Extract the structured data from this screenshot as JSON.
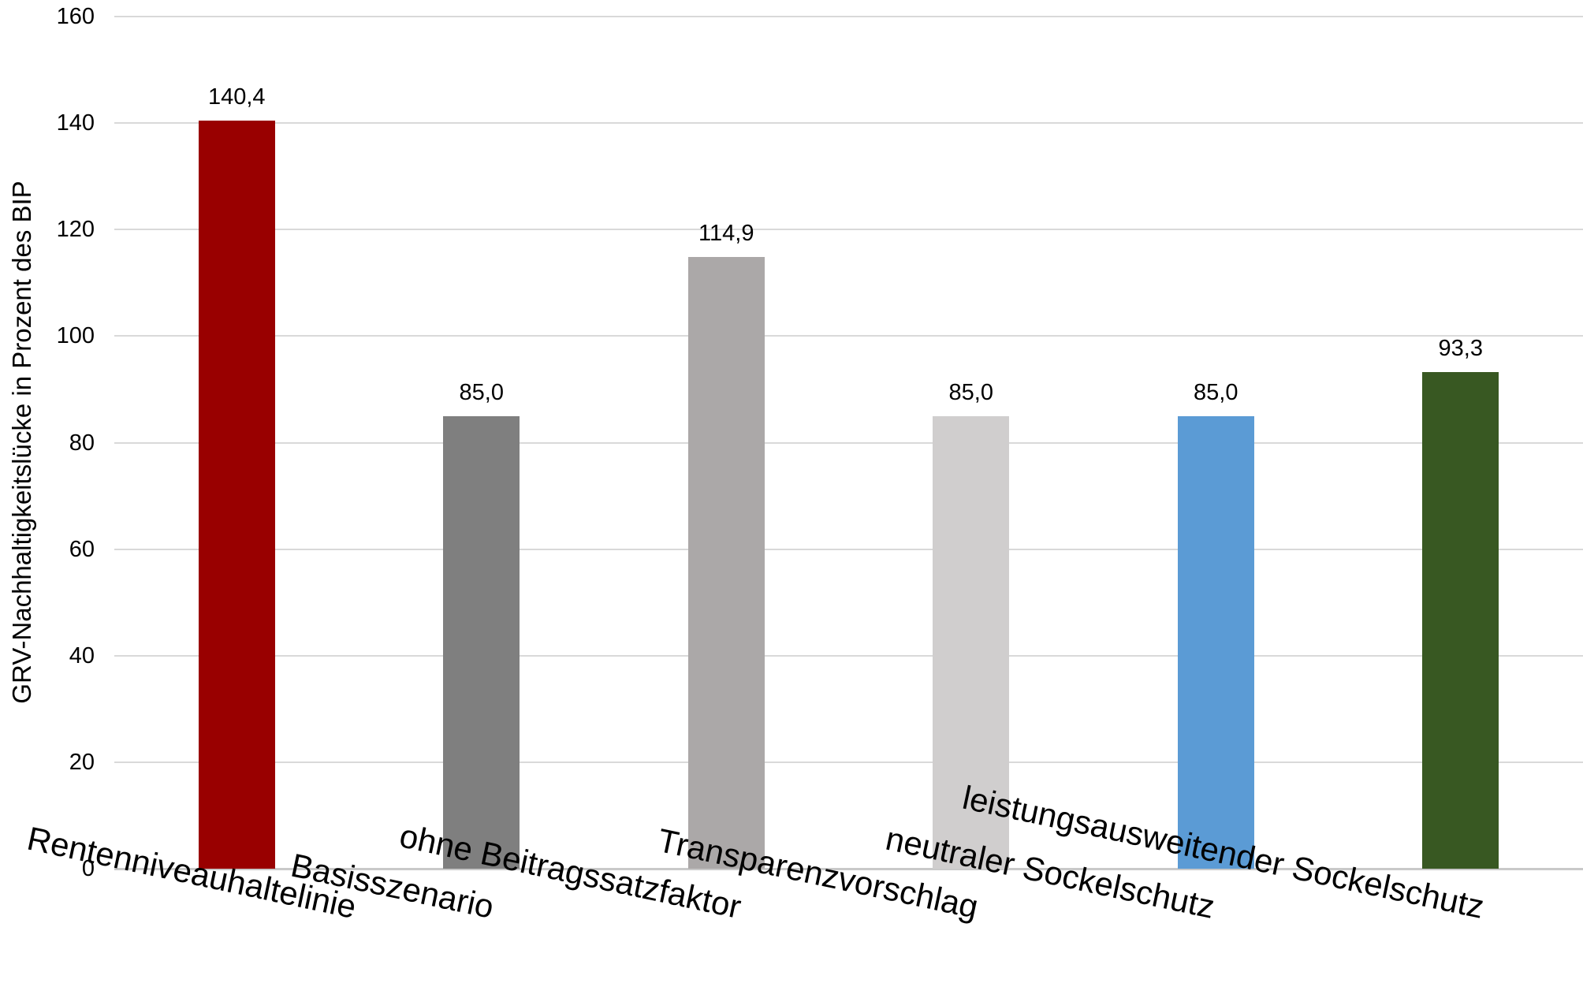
{
  "page": {
    "background_color": "#FFFFFF"
  },
  "chart_data": {
    "type": "bar",
    "title": "",
    "xlabel": "",
    "ylabel": "GRV-Nachhaltigkeitslücke in Prozent des BIP",
    "categories": [
      "Rentenniveauhaltelinie",
      "Basisszenario",
      "ohne Beitragssatzfaktor",
      "Transparenzvorschlag",
      "neutraler Sockelschutz",
      "leistungsausweitender Sockelschutz"
    ],
    "values": [
      140.4,
      85.0,
      114.9,
      85.0,
      85.0,
      93.3
    ],
    "value_labels": [
      "140,4",
      "85,0",
      "114,9",
      "85,0",
      "85,0",
      "93,3"
    ],
    "bar_colors": [
      "#990000",
      "#7F7F7F",
      "#ABA8A8",
      "#D0CECE",
      "#5B9BD5",
      "#385822"
    ],
    "ylim": [
      0,
      160
    ],
    "ytick_interval": 20,
    "ytick_labels": [
      "0",
      "20",
      "40",
      "60",
      "80",
      "100",
      "120",
      "140",
      "160"
    ],
    "grid": "horizontal gridlines on",
    "legend": "none",
    "number_format": "decimal comma (de-DE)",
    "colors": {
      "gridline": "#D9D9D9",
      "axis_line": "#C9C9C9",
      "text": "#000000",
      "background": "#FFFFFF"
    }
  }
}
